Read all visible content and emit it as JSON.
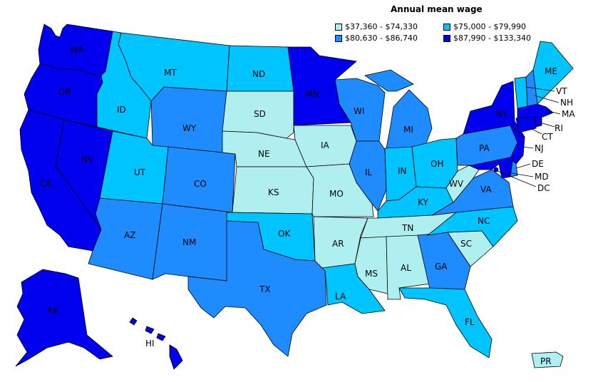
{
  "title": "Annual mean wage",
  "legend": [
    {
      "label": "$37,360 - $74,330",
      "color": "#b0efef"
    },
    {
      "label": "$75,000 - $79,990",
      "color": "#00c4ff"
    },
    {
      "label": "$80,630 - $86,740",
      "color": "#1e8cff"
    },
    {
      "label": "$87,990 - $133,340",
      "color": "#0000ee"
    }
  ],
  "states": {
    "WA": {
      "label": "WA",
      "tier": 3
    },
    "OR": {
      "label": "OR",
      "tier": 3
    },
    "CA": {
      "label": "CA",
      "tier": 3
    },
    "NV": {
      "label": "NV",
      "tier": 3
    },
    "ID": {
      "label": "ID",
      "tier": 1
    },
    "MT": {
      "label": "MT",
      "tier": 1
    },
    "WY": {
      "label": "WY",
      "tier": 2
    },
    "UT": {
      "label": "UT",
      "tier": 1
    },
    "CO": {
      "label": "CO",
      "tier": 2
    },
    "AZ": {
      "label": "AZ",
      "tier": 2
    },
    "NM": {
      "label": "NM",
      "tier": 2
    },
    "ND": {
      "label": "ND",
      "tier": 1
    },
    "SD": {
      "label": "SD",
      "tier": 0
    },
    "NE": {
      "label": "NE",
      "tier": 0
    },
    "KS": {
      "label": "KS",
      "tier": 0
    },
    "OK": {
      "label": "OK",
      "tier": 1
    },
    "TX": {
      "label": "TX",
      "tier": 2
    },
    "MN": {
      "label": "MN",
      "tier": 3
    },
    "IA": {
      "label": "IA",
      "tier": 0
    },
    "MO": {
      "label": "MO",
      "tier": 0
    },
    "AR": {
      "label": "AR",
      "tier": 0
    },
    "LA": {
      "label": "LA",
      "tier": 1
    },
    "WI": {
      "label": "WI",
      "tier": 2
    },
    "IL": {
      "label": "IL",
      "tier": 2
    },
    "MI": {
      "label": "MI",
      "tier": 2
    },
    "IN": {
      "label": "IN",
      "tier": 1
    },
    "OH": {
      "label": "OH",
      "tier": 1
    },
    "KY": {
      "label": "KY",
      "tier": 1
    },
    "TN": {
      "label": "TN",
      "tier": 0
    },
    "MS": {
      "label": "MS",
      "tier": 0
    },
    "AL": {
      "label": "AL",
      "tier": 0
    },
    "GA": {
      "label": "GA",
      "tier": 2
    },
    "FL": {
      "label": "FL",
      "tier": 1
    },
    "SC": {
      "label": "SC",
      "tier": 0
    },
    "NC": {
      "label": "NC",
      "tier": 1
    },
    "VA": {
      "label": "VA",
      "tier": 2
    },
    "WV": {
      "label": "WV",
      "tier": 0
    },
    "PA": {
      "label": "PA",
      "tier": 2
    },
    "NY": {
      "label": "NY",
      "tier": 3
    },
    "NJ": {
      "label": "NJ",
      "tier": 3
    },
    "DE": {
      "label": "DE",
      "tier": 2
    },
    "MD": {
      "label": "MD",
      "tier": 3
    },
    "DC": {
      "label": "DC",
      "tier": 3
    },
    "CT": {
      "label": "CT",
      "tier": 3
    },
    "RI": {
      "label": "RI",
      "tier": 3
    },
    "MA": {
      "label": "MA",
      "tier": 3
    },
    "VT": {
      "label": "VT",
      "tier": 1
    },
    "NH": {
      "label": "NH",
      "tier": 2
    },
    "ME": {
      "label": "ME",
      "tier": 1
    },
    "AK": {
      "label": "AK",
      "tier": 3
    },
    "HI": {
      "label": "HI",
      "tier": 3
    },
    "PR": {
      "label": "PR",
      "tier": 0
    }
  }
}
